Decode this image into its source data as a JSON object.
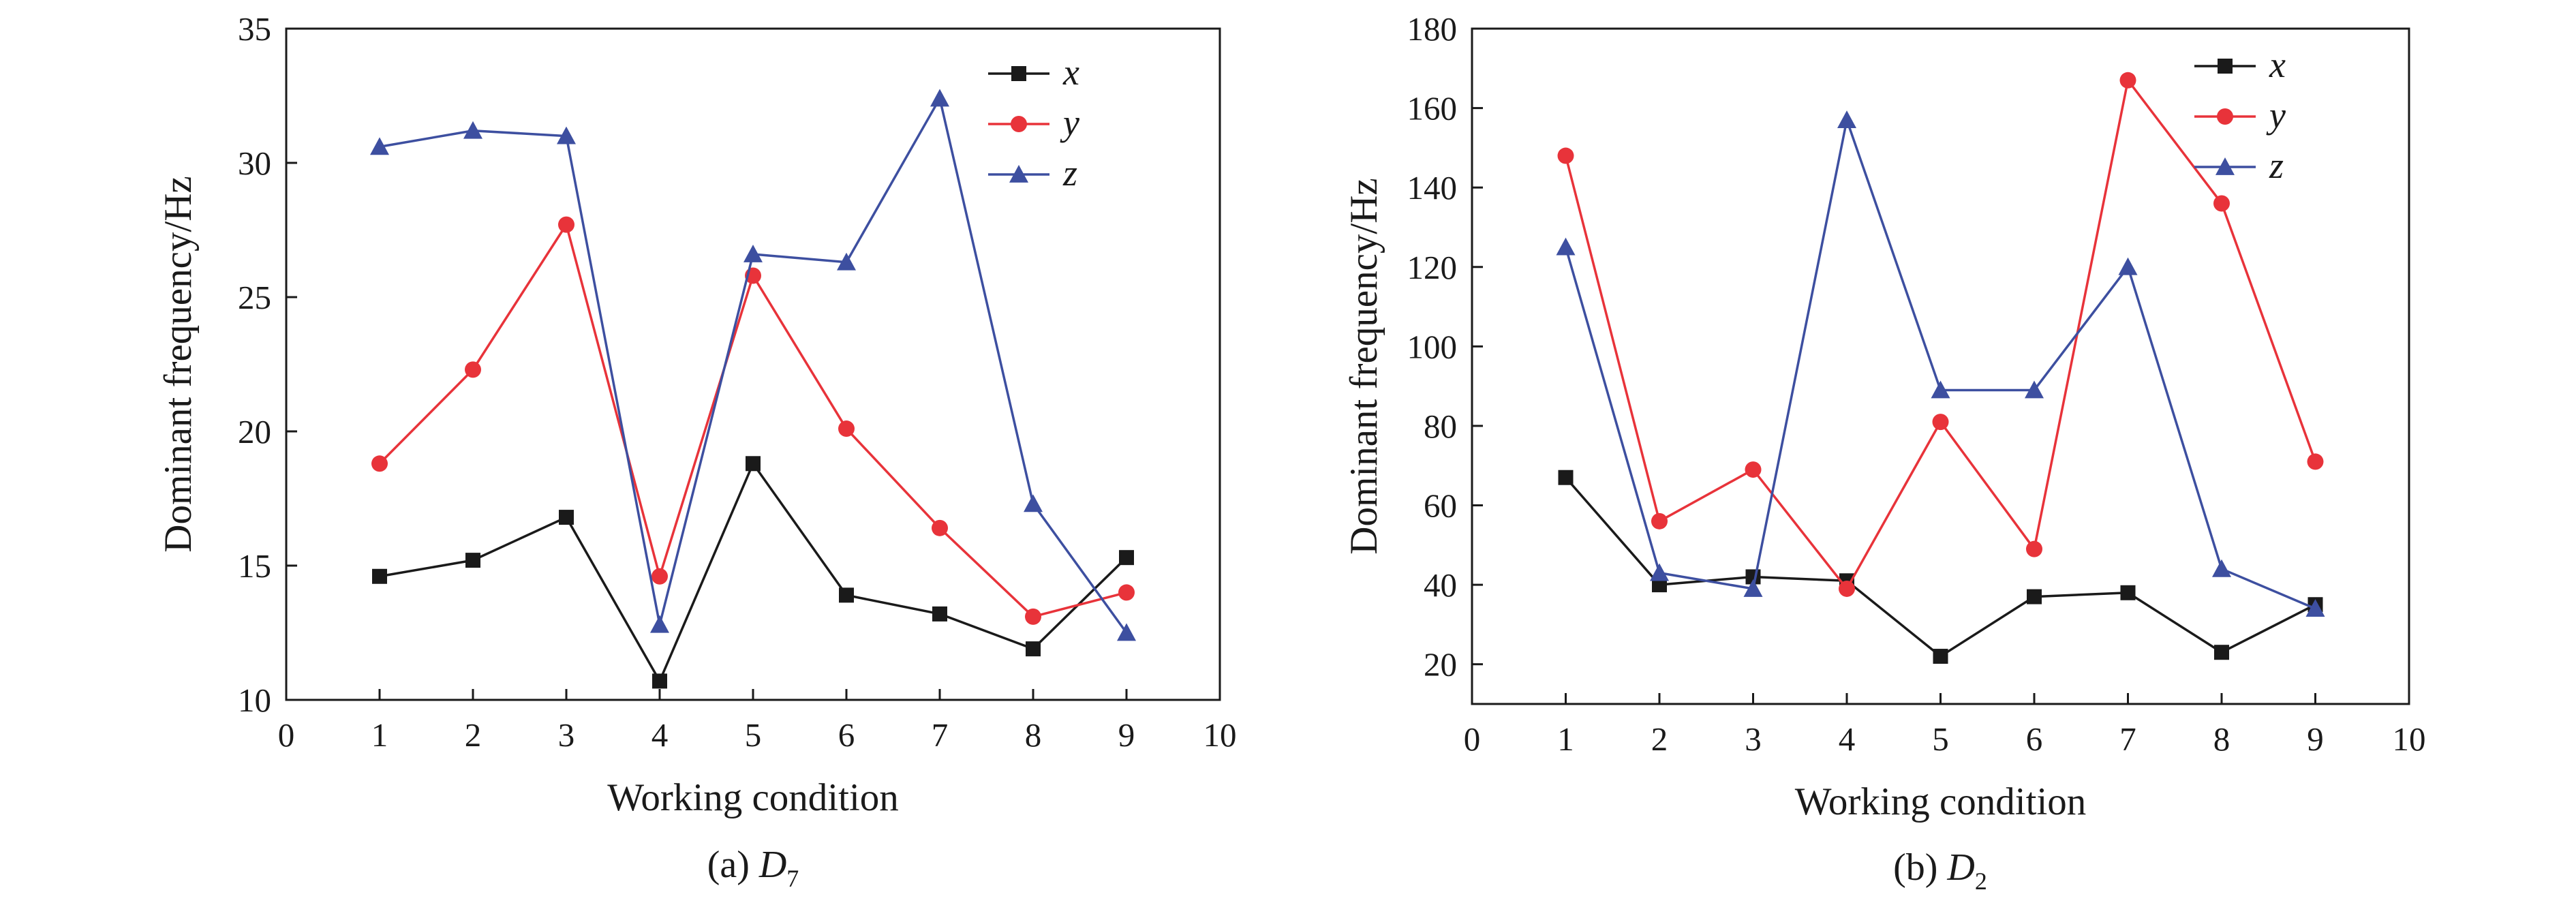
{
  "chart_data": [
    {
      "type": "line",
      "caption": {
        "prefix": "(a) ",
        "var": "D",
        "sub": "7"
      },
      "xlabel": "Working condition",
      "ylabel": "Dominant frequency/Hz",
      "xlim": [
        0,
        10
      ],
      "ylim": [
        10,
        35
      ],
      "xticks": [
        "0",
        "1",
        "2",
        "3",
        "4",
        "5",
        "6",
        "7",
        "8",
        "9",
        "10"
      ],
      "yticks": [
        "10",
        "15",
        "20",
        "25",
        "30",
        "35"
      ],
      "x": [
        1,
        2,
        3,
        4,
        5,
        6,
        7,
        8,
        9
      ],
      "legend_position": "top-right",
      "grid": false,
      "series": [
        {
          "name": "x",
          "color": "#1a1a1a",
          "marker": "square",
          "values": [
            14.6,
            15.2,
            16.8,
            10.7,
            18.8,
            13.9,
            13.2,
            11.9,
            15.3
          ]
        },
        {
          "name": "y",
          "color": "#e8333a",
          "marker": "circle",
          "values": [
            18.8,
            22.3,
            27.7,
            14.6,
            25.8,
            20.1,
            16.4,
            13.1,
            14.0
          ]
        },
        {
          "name": "z",
          "color": "#3d4fa0",
          "marker": "triangle",
          "values": [
            30.6,
            31.2,
            31.0,
            12.8,
            26.6,
            26.3,
            32.4,
            17.3,
            12.5
          ]
        }
      ]
    },
    {
      "type": "line",
      "caption": {
        "prefix": "(b) ",
        "var": "D",
        "sub": "2"
      },
      "xlabel": "Working condition",
      "ylabel": "Dominant frequency/Hz",
      "xlim": [
        0,
        10
      ],
      "ylim": [
        10,
        180
      ],
      "xticks": [
        "0",
        "1",
        "2",
        "3",
        "4",
        "5",
        "6",
        "7",
        "8",
        "9",
        "10"
      ],
      "yticks": [
        "20",
        "40",
        "60",
        "80",
        "100",
        "120",
        "140",
        "160",
        "180"
      ],
      "x": [
        1,
        2,
        3,
        4,
        5,
        6,
        7,
        8,
        9
      ],
      "legend_position": "top-right",
      "grid": false,
      "series": [
        {
          "name": "x",
          "color": "#1a1a1a",
          "marker": "square",
          "values": [
            67,
            40,
            42,
            41,
            22,
            37,
            38,
            23,
            35
          ]
        },
        {
          "name": "y",
          "color": "#e8333a",
          "marker": "circle",
          "values": [
            148,
            56,
            69,
            39,
            81,
            49,
            167,
            136,
            71
          ]
        },
        {
          "name": "z",
          "color": "#3d4fa0",
          "marker": "triangle",
          "values": [
            125,
            43,
            39,
            157,
            89,
            89,
            120,
            44,
            34
          ]
        }
      ]
    }
  ]
}
